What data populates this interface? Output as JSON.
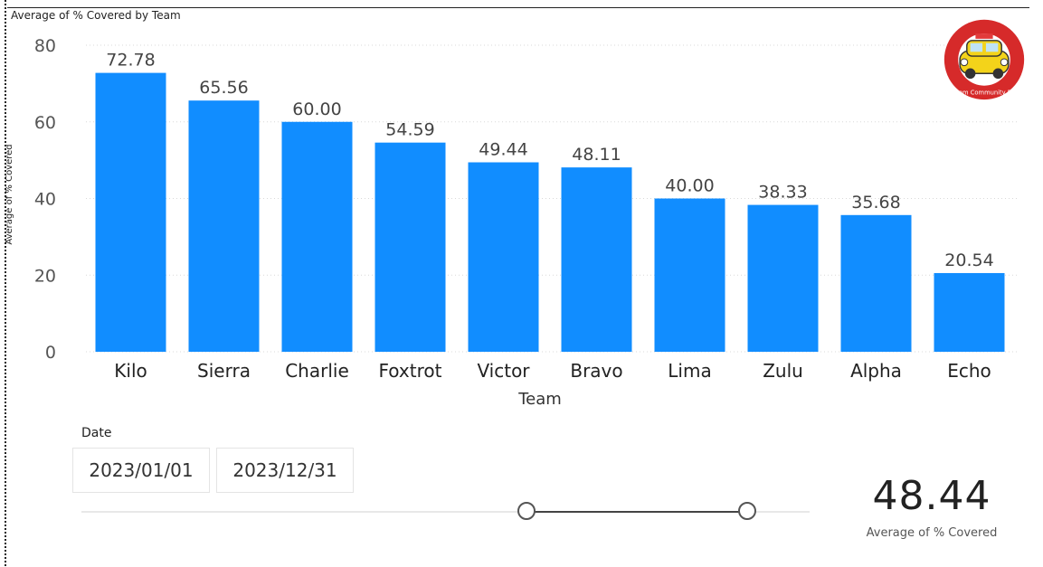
{
  "chart_data": {
    "type": "bar",
    "title": "Average of % Covered by Team",
    "xlabel": "Team",
    "ylabel": "Average of % Covered",
    "ylim": [
      0,
      80
    ],
    "yticks": [
      0,
      20,
      40,
      60,
      80
    ],
    "categories": [
      "Kilo",
      "Sierra",
      "Charlie",
      "Foxtrot",
      "Victor",
      "Bravo",
      "Lima",
      "Zulu",
      "Alpha",
      "Echo"
    ],
    "values": [
      72.78,
      65.56,
      60.0,
      54.59,
      49.44,
      48.11,
      40.0,
      38.33,
      35.68,
      20.54
    ],
    "data_labels": [
      "72.78",
      "65.56",
      "60.00",
      "54.59",
      "49.44",
      "48.11",
      "40.00",
      "38.33",
      "35.68",
      "20.54"
    ],
    "grid": true,
    "bar_color": "#118DFF"
  },
  "logo": {
    "text": "GorsCom Community Patrols",
    "icon": "car-icon"
  },
  "slicer": {
    "label": "Date",
    "start": "2023/01/01",
    "end": "2023/12/31"
  },
  "kpi": {
    "value": "48.44",
    "label": "Average of % Covered"
  }
}
